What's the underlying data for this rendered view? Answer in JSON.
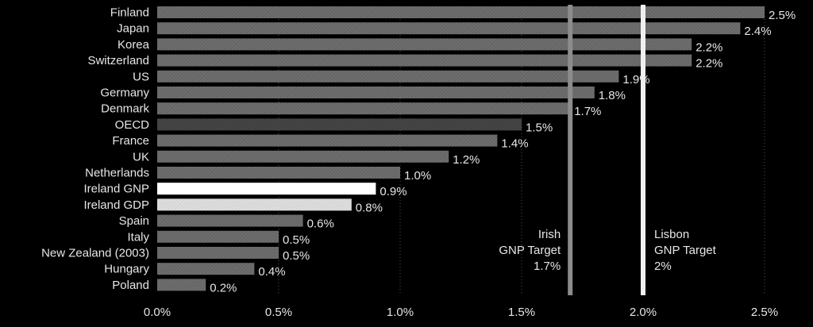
{
  "chart_data": {
    "type": "bar",
    "orientation": "horizontal",
    "categories": [
      "Finland",
      "Japan",
      "Korea",
      "Switzerland",
      "US",
      "Germany",
      "Denmark",
      "OECD",
      "France",
      "UK",
      "Netherlands",
      "Ireland GNP",
      "Ireland GDP",
      "Spain",
      "Italy",
      "New Zealand (2003)",
      "Hungary",
      "Poland"
    ],
    "values": [
      2.5,
      2.4,
      2.2,
      2.2,
      1.9,
      1.8,
      1.7,
      1.5,
      1.4,
      1.2,
      1.0,
      0.9,
      0.8,
      0.6,
      0.5,
      0.5,
      0.4,
      0.2
    ],
    "value_labels": [
      "2.5%",
      "2.4%",
      "2.2%",
      "2.2%",
      "1.9%",
      "1.8%",
      "1.7%",
      "1.5%",
      "1.4%",
      "1.2%",
      "1.0%",
      "0.9%",
      "0.8%",
      "0.6%",
      "0.5%",
      "0.5%",
      "0.4%",
      "0.2%"
    ],
    "bar_styles": [
      "normal",
      "normal",
      "normal",
      "normal",
      "normal",
      "normal",
      "normal",
      "dark",
      "normal",
      "normal",
      "normal",
      "white",
      "light",
      "normal",
      "normal",
      "normal",
      "normal",
      "normal"
    ],
    "xlim": [
      0,
      2.6
    ],
    "xticks": [
      0,
      0.5,
      1.0,
      1.5,
      2.0,
      2.5
    ],
    "xtick_labels": [
      "0.0%",
      "0.5%",
      "1.0%",
      "1.5%",
      "2.0%",
      "2.5%"
    ],
    "grid": "vertical dotted",
    "reference_lines": [
      {
        "value": 1.7,
        "lines": [
          "Irish",
          "GNP Target",
          "1.7%"
        ],
        "text_side": "left",
        "color": "#8c8c8c"
      },
      {
        "value": 2.0,
        "lines": [
          "Lisbon",
          "GNP Target",
          "2%"
        ],
        "text_side": "right",
        "color": "#f0f0f0"
      }
    ],
    "colors": {
      "background": "#000000",
      "bar": "#6e6e6e",
      "bar_dark": "#454545",
      "bar_white": "#ffffff",
      "bar_light": "#d9d9d9",
      "text": "#e6e6e6",
      "grid": "#555555"
    }
  }
}
